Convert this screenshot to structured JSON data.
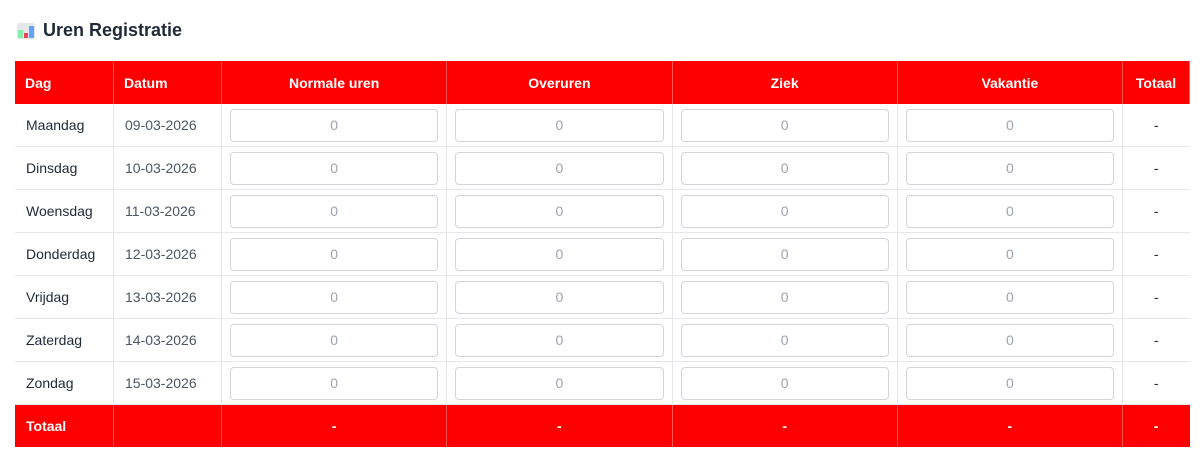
{
  "title": "Uren Registratie",
  "icon": "bar-chart-icon",
  "accent": "#ff0000",
  "headers": [
    "Dag",
    "Datum",
    "Normale uren",
    "Overuren",
    "Ziek",
    "Vakantie",
    "Totaal"
  ],
  "rows": [
    {
      "day": "Maandag",
      "date": "09-03-2026",
      "placeholder": "0",
      "total": "-"
    },
    {
      "day": "Dinsdag",
      "date": "10-03-2026",
      "placeholder": "0",
      "total": "-"
    },
    {
      "day": "Woensdag",
      "date": "11-03-2026",
      "placeholder": "0",
      "total": "-"
    },
    {
      "day": "Donderdag",
      "date": "12-03-2026",
      "placeholder": "0",
      "total": "-"
    },
    {
      "day": "Vrijdag",
      "date": "13-03-2026",
      "placeholder": "0",
      "total": "-"
    },
    {
      "day": "Zaterdag",
      "date": "14-03-2026",
      "placeholder": "0",
      "total": "-"
    },
    {
      "day": "Zondag",
      "date": "15-03-2026",
      "placeholder": "0",
      "total": "-"
    }
  ],
  "footer": {
    "label": "Totaal",
    "normale": "-",
    "overuren": "-",
    "ziek": "-",
    "vakantie": "-",
    "totaal": "-"
  }
}
